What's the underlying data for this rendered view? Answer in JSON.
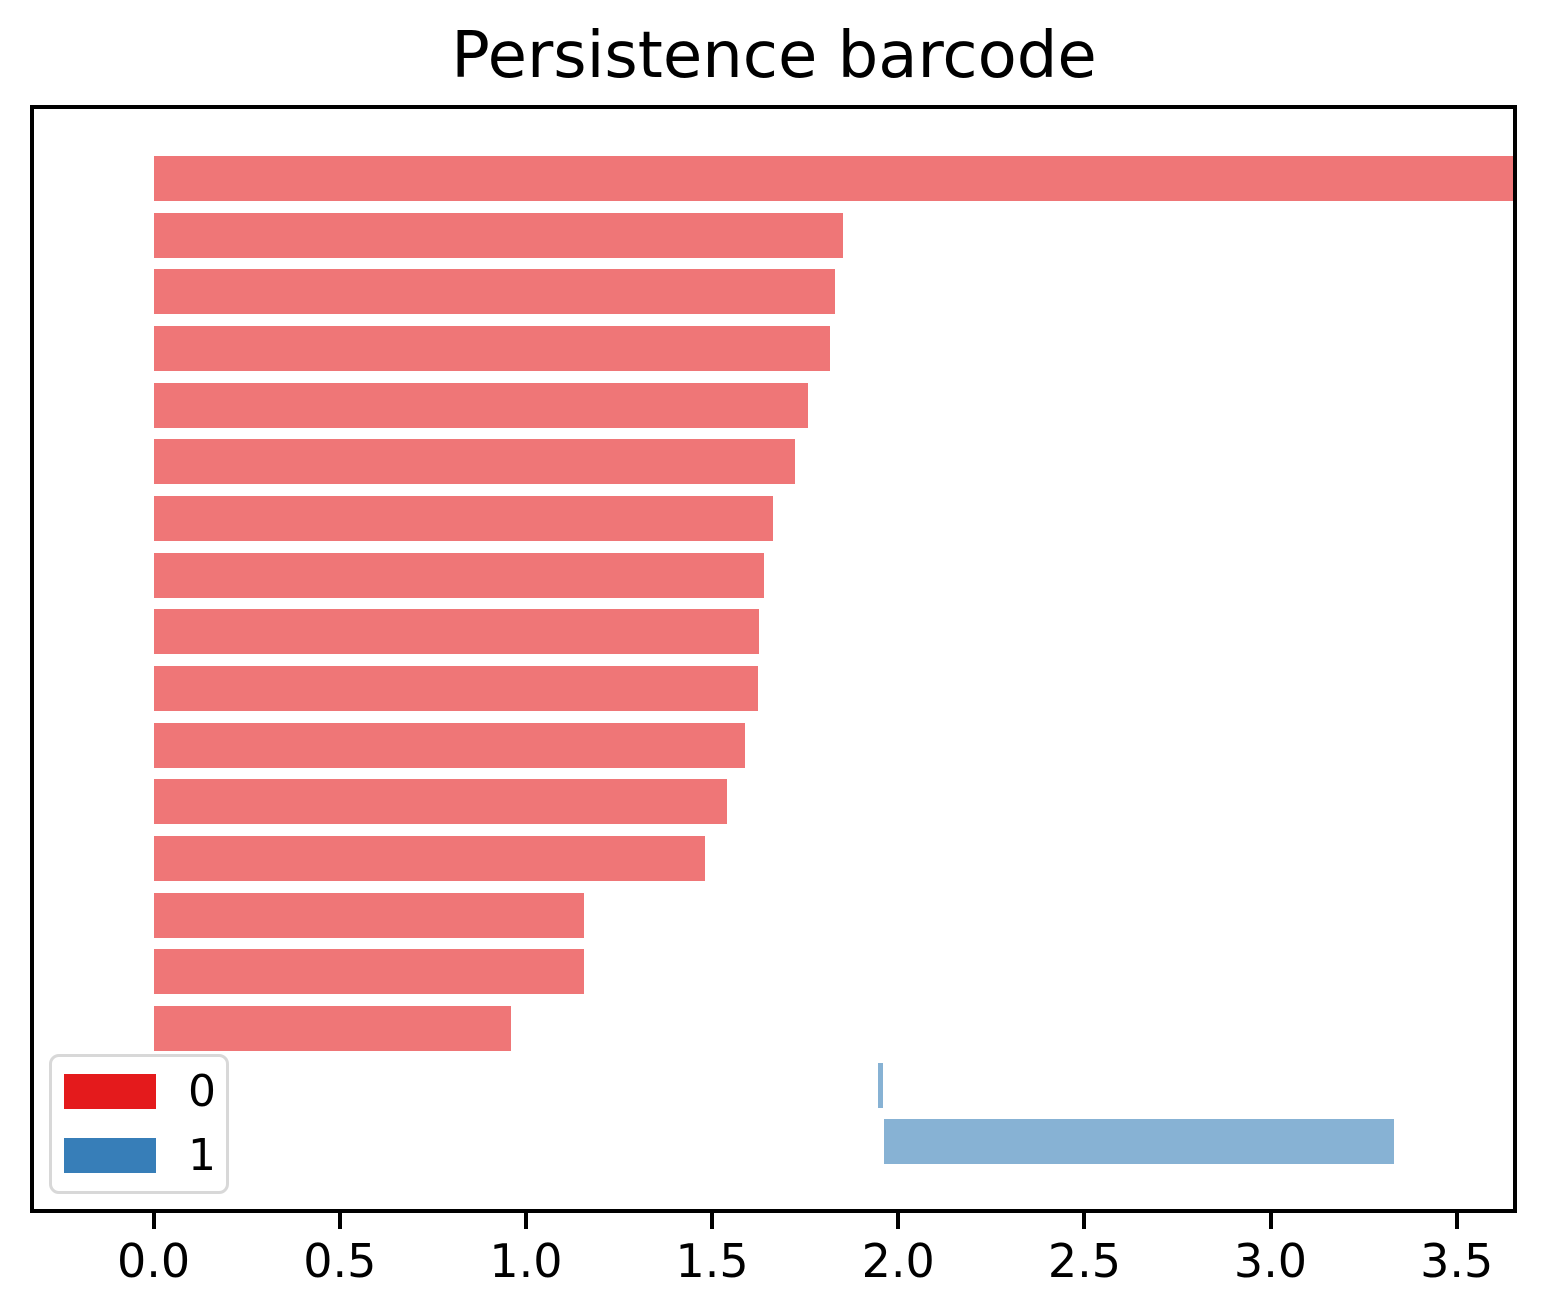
{
  "title": "Persistence barcode",
  "legend": {
    "items": [
      {
        "label": "0",
        "color": "#e41a1c"
      },
      {
        "label": "1",
        "color": "#377eb8"
      }
    ]
  },
  "axis": {
    "ticks": [
      {
        "value": 0.0,
        "label": "0.0"
      },
      {
        "value": 0.5,
        "label": "0.5"
      },
      {
        "value": 1.0,
        "label": "1.0"
      },
      {
        "value": 1.5,
        "label": "1.5"
      },
      {
        "value": 2.0,
        "label": "2.0"
      },
      {
        "value": 2.5,
        "label": "2.5"
      },
      {
        "value": 3.0,
        "label": "3.0"
      },
      {
        "value": 3.5,
        "label": "3.5"
      }
    ]
  },
  "chart_data": {
    "type": "bar",
    "variant": "persistence-barcode",
    "title": "Persistence barcode",
    "xlabel": "",
    "ylabel": "",
    "xlim": [
      -0.332,
      3.662
    ],
    "grid": false,
    "legend_position": "lower left",
    "bar_alpha": 0.6,
    "dimension_colors": {
      "0": "#e41a1c",
      "1": "#377eb8"
    },
    "bars": [
      {
        "dim": 0,
        "birth": 0.0,
        "death": "inf"
      },
      {
        "dim": 0,
        "birth": 0.0,
        "death": 1.853
      },
      {
        "dim": 0,
        "birth": 0.0,
        "death": 1.83
      },
      {
        "dim": 0,
        "birth": 0.0,
        "death": 1.816
      },
      {
        "dim": 0,
        "birth": 0.0,
        "death": 1.758
      },
      {
        "dim": 0,
        "birth": 0.0,
        "death": 1.722
      },
      {
        "dim": 0,
        "birth": 0.0,
        "death": 1.664
      },
      {
        "dim": 0,
        "birth": 0.0,
        "death": 1.64
      },
      {
        "dim": 0,
        "birth": 0.0,
        "death": 1.625
      },
      {
        "dim": 0,
        "birth": 0.0,
        "death": 1.624
      },
      {
        "dim": 0,
        "birth": 0.0,
        "death": 1.588
      },
      {
        "dim": 0,
        "birth": 0.0,
        "death": 1.539
      },
      {
        "dim": 0,
        "birth": 0.0,
        "death": 1.481
      },
      {
        "dim": 0,
        "birth": 0.0,
        "death": 1.156
      },
      {
        "dim": 0,
        "birth": 0.0,
        "death": 1.155
      },
      {
        "dim": 0,
        "birth": 0.0,
        "death": 0.96
      },
      {
        "dim": 1,
        "birth": 1.946,
        "death": 1.96
      },
      {
        "dim": 1,
        "birth": 1.962,
        "death": 3.331
      }
    ]
  }
}
